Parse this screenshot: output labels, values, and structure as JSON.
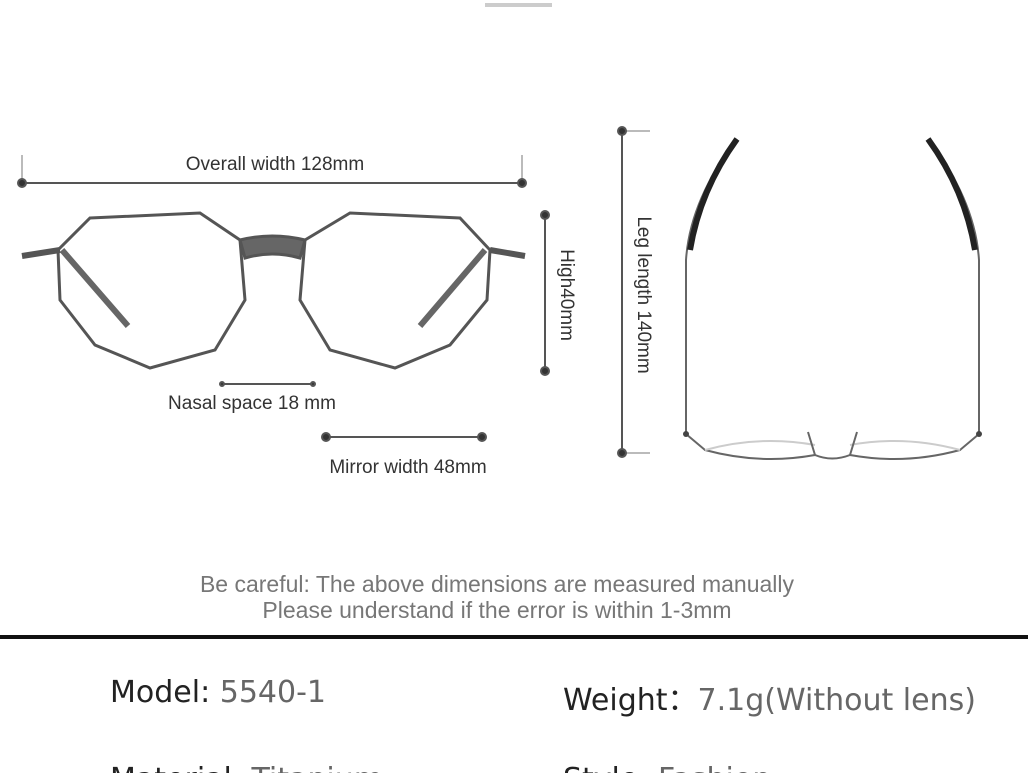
{
  "dimensions": {
    "overall_width": "Overall width 128mm",
    "height": "High40mm",
    "nasal_space": "Nasal space 18 mm",
    "mirror_width": "Mirror width 48mm",
    "leg_length": "Leg length 140mm"
  },
  "note": [
    "Be careful: The above dimensions are measured manually",
    "Please understand if the error is within 1-3mm"
  ],
  "specs": [
    {
      "label": "Model:",
      "value": "5540-1"
    },
    {
      "label": "Weight：",
      "value": "7.1g(Without lens)"
    },
    {
      "label": "Material:",
      "value": "Titanium"
    },
    {
      "label": "Style:",
      "value": "Fashion"
    }
  ]
}
